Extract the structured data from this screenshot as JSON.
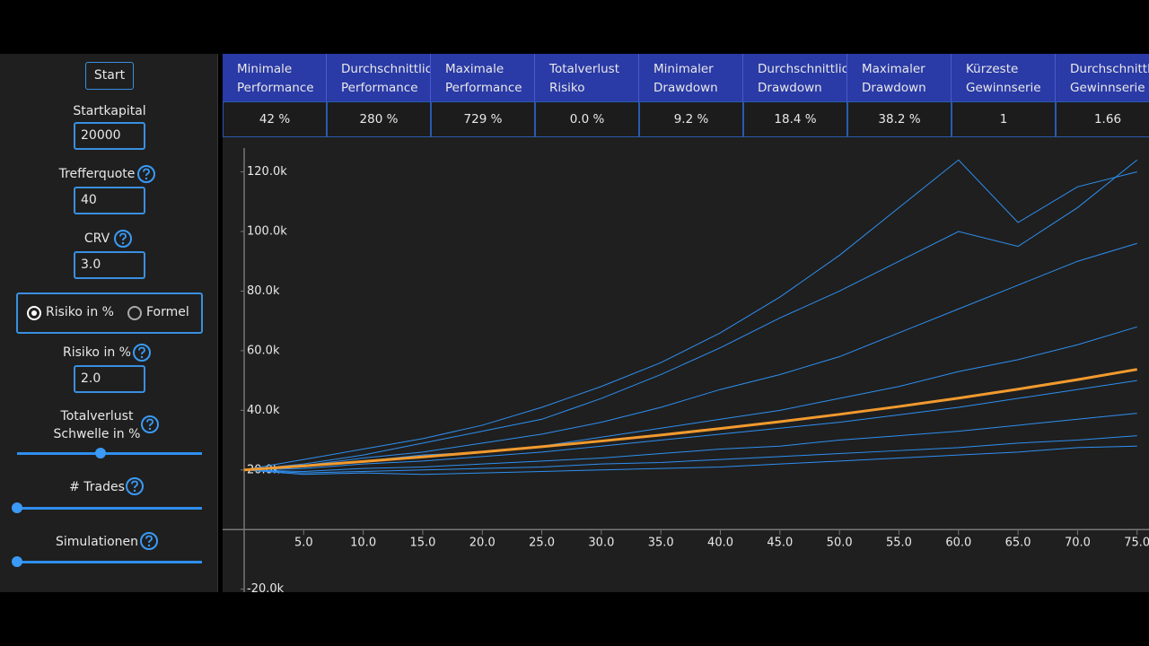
{
  "sidebar": {
    "start_button": "Start",
    "startkapital_label": "Startkapital",
    "startkapital_value": "20000",
    "trefferquote_label": "Trefferquote",
    "trefferquote_value": "40",
    "crv_label": "CRV",
    "crv_value": "3.0",
    "radio_options": [
      "Risiko in %",
      "Formel"
    ],
    "risiko_label": "Risiko in %",
    "risiko_value": "2.0",
    "totalverlust_label": [
      "Totalverlust",
      "Schwelle in %"
    ],
    "trades_label": "# Trades",
    "simulationen_label": "Simulationen"
  },
  "table": {
    "headers": [
      [
        "Minimale",
        "Performance"
      ],
      [
        "Durchschnittliche",
        "Performance"
      ],
      [
        "Maximale",
        "Performance"
      ],
      [
        "Totalverlust",
        "Risiko"
      ],
      [
        "Minimaler",
        "Drawdown"
      ],
      [
        "Durchschnittlicher",
        "Drawdown"
      ],
      [
        "Maximaler",
        "Drawdown"
      ],
      [
        "Kürzeste",
        "Gewinnserie"
      ],
      [
        "Durchschnittliche",
        "Gewinnserie"
      ]
    ],
    "rows": [
      [
        "42 %",
        "280 %",
        "729 %",
        "0.0 %",
        "9.2 %",
        "18.4 %",
        "38.2 %",
        "1",
        "1.66"
      ]
    ]
  },
  "chart_data": {
    "type": "line",
    "x": [
      0,
      5,
      10,
      15,
      20,
      25,
      30,
      35,
      40,
      45,
      50,
      55,
      60,
      65,
      70,
      75
    ],
    "series": [
      {
        "color": "#2e8ff0",
        "values": [
          20000,
          23500,
          27000,
          30500,
          35000,
          41000,
          48000,
          56000,
          66000,
          78000,
          92000,
          108000,
          124000,
          103000,
          115000,
          120000
        ]
      },
      {
        "color": "#2e8ff0",
        "values": [
          20000,
          22000,
          25000,
          29000,
          33000,
          37000,
          44000,
          52000,
          61000,
          71000,
          80000,
          90000,
          100000,
          95000,
          108000,
          124000
        ]
      },
      {
        "color": "#2e8ff0",
        "values": [
          20000,
          21500,
          24000,
          26000,
          29000,
          32000,
          36000,
          41000,
          47000,
          52000,
          58000,
          66000,
          74000,
          82000,
          90000,
          96000
        ]
      },
      {
        "color": "#2e8ff0",
        "values": [
          20000,
          21000,
          23000,
          25000,
          26000,
          28000,
          31000,
          34000,
          37000,
          40000,
          44000,
          48000,
          53000,
          57000,
          62000,
          68000
        ]
      },
      {
        "color": "#2e8ff0",
        "values": [
          20000,
          20500,
          22000,
          23000,
          24500,
          26000,
          28000,
          30000,
          32000,
          34000,
          36000,
          38500,
          41000,
          44000,
          47000,
          50000
        ]
      },
      {
        "color": "#2e8ff0",
        "values": [
          20000,
          19500,
          20500,
          21000,
          22000,
          23000,
          24000,
          25500,
          27000,
          28000,
          30000,
          31500,
          33000,
          35000,
          37000,
          39000
        ]
      },
      {
        "color": "#2e8ff0",
        "values": [
          20000,
          19000,
          19500,
          20000,
          20500,
          21000,
          22000,
          22500,
          23500,
          24500,
          25500,
          26500,
          27500,
          29000,
          30000,
          31500
        ]
      },
      {
        "color": "#2e8ff0",
        "values": [
          20000,
          18500,
          19000,
          18500,
          19000,
          19500,
          20000,
          20500,
          21000,
          22000,
          23000,
          24000,
          25000,
          26000,
          27500,
          28000
        ]
      },
      {
        "color": "#f29a2e",
        "values": [
          20000,
          21360,
          22820,
          24370,
          26030,
          27800,
          29700,
          31720,
          33880,
          36190,
          38650,
          41290,
          44100,
          47100,
          50310,
          53740
        ]
      }
    ],
    "xlim": [
      0,
      76
    ],
    "ylim": [
      -21000,
      131000
    ],
    "xticks": [
      {
        "value": 5,
        "label": "5.0"
      },
      {
        "value": 10,
        "label": "10.0"
      },
      {
        "value": 15,
        "label": "15.0"
      },
      {
        "value": 20,
        "label": "20.0"
      },
      {
        "value": 25,
        "label": "25.0"
      },
      {
        "value": 30,
        "label": "30.0"
      },
      {
        "value": 35,
        "label": "35.0"
      },
      {
        "value": 40,
        "label": "40.0"
      },
      {
        "value": 45,
        "label": "45.0"
      },
      {
        "value": 50,
        "label": "50.0"
      },
      {
        "value": 55,
        "label": "55.0"
      },
      {
        "value": 60,
        "label": "60.0"
      },
      {
        "value": 65,
        "label": "65.0"
      },
      {
        "value": 70,
        "label": "70.0"
      },
      {
        "value": 75,
        "label": "75.0"
      }
    ],
    "yticks": [
      {
        "value": -20000,
        "label": "-20.0k"
      },
      {
        "value": 20000,
        "label": "20.0k"
      },
      {
        "value": 40000,
        "label": "40.0k"
      },
      {
        "value": 60000,
        "label": "60.0k"
      },
      {
        "value": 80000,
        "label": "80.0k"
      },
      {
        "value": 100000,
        "label": "100.0k"
      },
      {
        "value": 120000,
        "label": "120.0k"
      }
    ]
  }
}
